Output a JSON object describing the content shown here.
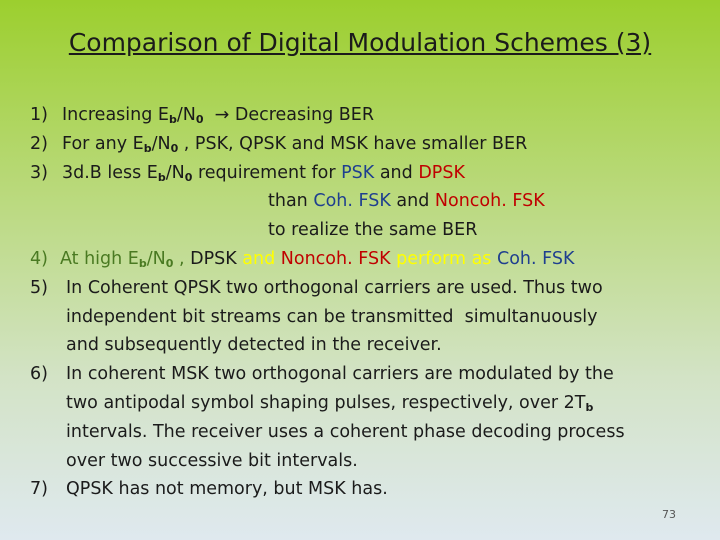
{
  "title": "Comparison of Digital Modulation Schemes (3)",
  "page_number": "73",
  "items": [
    {
      "number": "1)",
      "color": "#1b1b1b",
      "lines": [
        [
          {
            "text": "Increasing E"
          },
          {
            "text": "b",
            "sub": true
          },
          {
            "text": "/N"
          },
          {
            "text": "0",
            "sub": true
          },
          {
            "text": "  → Decreasing BER"
          }
        ]
      ]
    },
    {
      "number": "2)",
      "color": "#1b1b1b",
      "lines": [
        [
          {
            "text": "For any E"
          },
          {
            "text": "b",
            "sub": true
          },
          {
            "text": "/N"
          },
          {
            "text": "0",
            "sub": true
          },
          {
            "text": " , PSK, QPSK and MSK have smaller BER"
          }
        ]
      ]
    },
    {
      "number": "3)",
      "color": "#1b1b1b",
      "lines": [
        [
          {
            "text": "3d.B less E"
          },
          {
            "text": "b",
            "sub": true
          },
          {
            "text": "/N"
          },
          {
            "text": "0",
            "sub": true
          },
          {
            "text": " requirement for "
          },
          {
            "text": "PSK",
            "color": "#1f3f8f"
          },
          {
            "text": " and "
          },
          {
            "text": "DPSK",
            "color": "#c00000"
          }
        ],
        [
          {
            "text": "than "
          },
          {
            "text": "Coh. FSK",
            "color": "#1f3f8f"
          },
          {
            "text": " and "
          },
          {
            "text": "Noncoh. FSK",
            "color": "#c00000"
          }
        ],
        [
          {
            "text": "to realize the same BER"
          }
        ]
      ]
    },
    {
      "number": "4)",
      "color": "#4a7a22",
      "lines": [
        [
          {
            "text": "At high E"
          },
          {
            "text": "b",
            "sub": true
          },
          {
            "text": "/N"
          },
          {
            "text": "0",
            "sub": true
          },
          {
            "text": " , "
          },
          {
            "text": "DPSK",
            "color": "#1b1b1b"
          },
          {
            "text": " and ",
            "color": "#ffff00"
          },
          {
            "text": "Noncoh. FSK",
            "color": "#c00000"
          },
          {
            "text": " perform as ",
            "color": "#ffff00"
          },
          {
            "text": "Coh. FSK",
            "color": "#1f3f8f"
          }
        ]
      ]
    },
    {
      "number": "5)",
      "color": "#1b1b1b",
      "lines": [
        [
          {
            "text": "In Coherent QPSK two orthogonal carriers are used. Thus two"
          }
        ],
        [
          {
            "text": "independent bit streams can be transmitted  simultanuously"
          }
        ],
        [
          {
            "text": "and subsequently detected in the receiver."
          }
        ]
      ]
    },
    {
      "number": "6)",
      "color": "#1b1b1b",
      "lines": [
        [
          {
            "text": "In coherent MSK two orthogonal carriers are modulated by the"
          }
        ],
        [
          {
            "text": "two antipodal symbol shaping pulses, respectively, over 2T"
          },
          {
            "text": "b",
            "sub": true
          }
        ],
        [
          {
            "text": "intervals. The receiver uses a coherent phase decoding process"
          }
        ],
        [
          {
            "text": "over two successive bit intervals."
          }
        ]
      ]
    },
    {
      "number": "7)",
      "color": "#1b1b1b",
      "lines": [
        [
          {
            "text": "QPSK has not memory, but MSK has."
          }
        ]
      ]
    }
  ]
}
